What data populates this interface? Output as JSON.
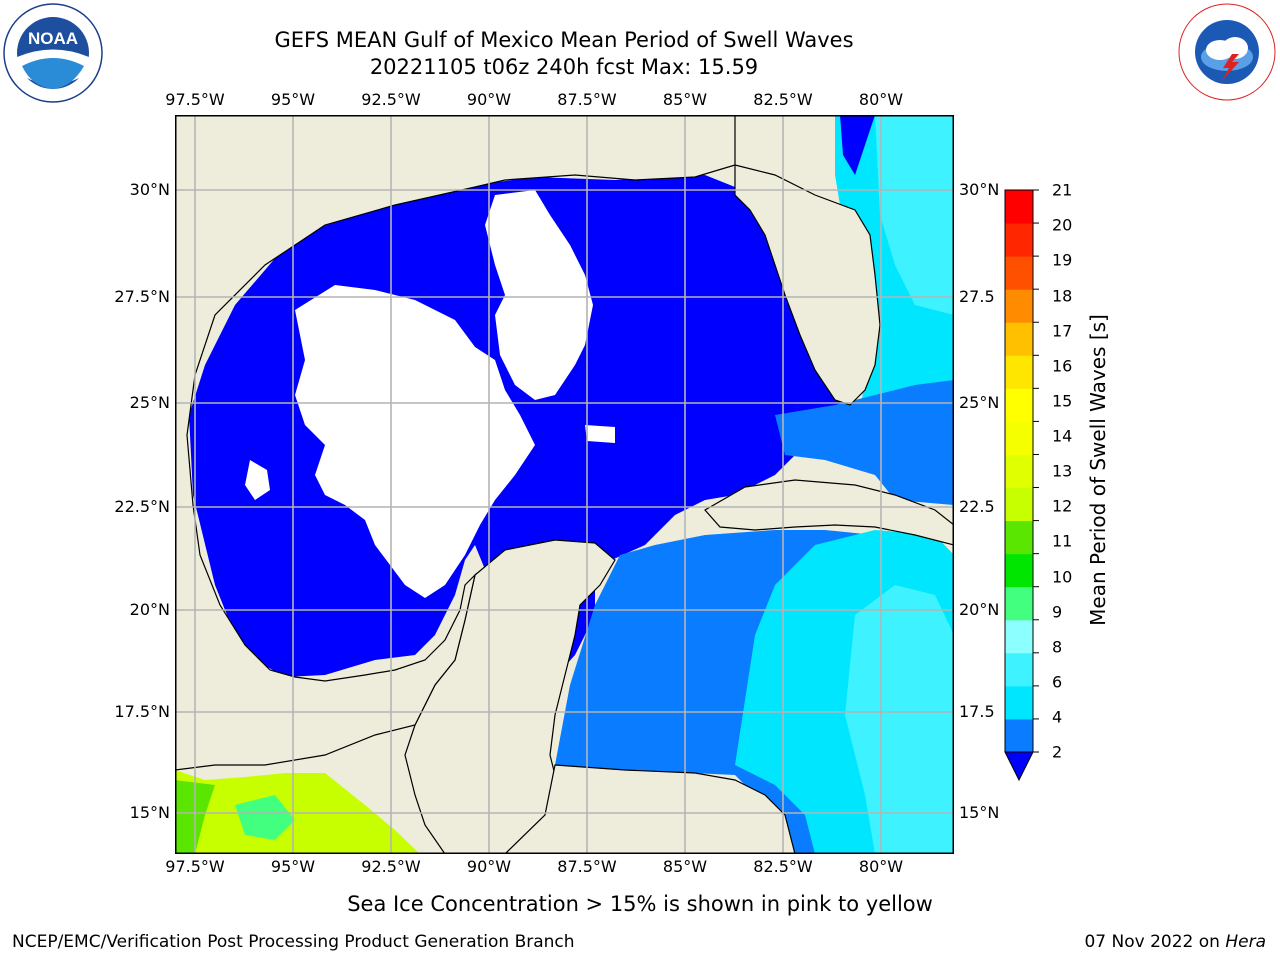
{
  "header": {
    "title_line1": "GEFS MEAN Gulf of Mexico Mean Period of Swell Waves",
    "title_line2": "20221105 t06z 240h fcst   Max: 15.59"
  },
  "map": {
    "lon_labels": [
      "97.5°W",
      "95°W",
      "92.5°W",
      "90°W",
      "87.5°W",
      "85°W",
      "82.5°W",
      "80°W"
    ],
    "lat_labels_left": [
      "30°N",
      "27.5°N",
      "25°N",
      "22.5°N",
      "20°N",
      "17.5°N",
      "15°N"
    ],
    "lat_labels_right": [
      "30°N",
      "27.5",
      "25°N",
      "22.5",
      "20°N",
      "17.5",
      "15°N"
    ],
    "colors": {
      "land": "#eeeddc",
      "no_data": "#ffffff",
      "grid": "#b4b4b4"
    }
  },
  "colorbar": {
    "title": "Mean Period of Swell Waves [s]",
    "tick_labels": [
      "2",
      "4",
      "6",
      "8",
      "9",
      "10",
      "11",
      "12",
      "13",
      "14",
      "15",
      "16",
      "17",
      "18",
      "19",
      "20",
      "21"
    ],
    "colors": [
      "#0a7cff",
      "#00e6ff",
      "#3ff2ff",
      "#8cffff",
      "#42ff7f",
      "#00e600",
      "#5ae600",
      "#c8ff00",
      "#e0ff00",
      "#f5ff00",
      "#ffff00",
      "#ffe600",
      "#ffc000",
      "#ff8c00",
      "#ff5000",
      "#ff2600",
      "#ff0000"
    ],
    "under_color": "#0000ff"
  },
  "footer": {
    "note": "Sea Ice Concentration > 15% is shown in pink to yellow",
    "credit": "NCEP/EMC/Verification Post Processing Product Generation Branch",
    "date": "07 Nov 2022 on",
    "host": "Hera"
  },
  "logos": {
    "left_text": "NOAA",
    "left_ring_text": "NATIONAL OCEANIC AND ATMOSPHERIC ADMINISTRATION · U.S. DEPARTMENT OF COMMERCE",
    "right_ring_text": "NATIONAL WEATHER SERVICE"
  }
}
